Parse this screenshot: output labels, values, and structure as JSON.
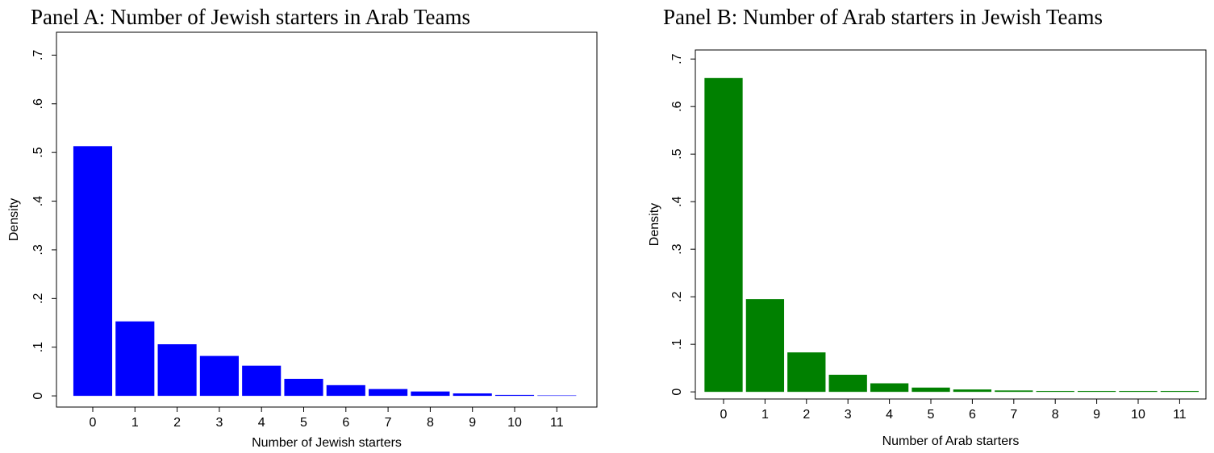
{
  "chart_data": [
    {
      "type": "bar",
      "title": "Panel A: Number of Jewish starters in Arab Teams",
      "x_label": "Number of Jewish starters",
      "y_label": "Density",
      "categories": [
        "0",
        "1",
        "2",
        "3",
        "4",
        "5",
        "6",
        "7",
        "8",
        "9",
        "10",
        "11"
      ],
      "values": [
        0.513,
        0.153,
        0.106,
        0.082,
        0.062,
        0.035,
        0.022,
        0.014,
        0.009,
        0.005,
        0.002,
        0.001
      ],
      "color": "#0000ff",
      "ylim": [
        -0.023,
        0.747
      ],
      "yticks": [
        0,
        {
          "value": 0.1,
          "label": ".1"
        },
        {
          "value": 0.2,
          "label": ".2"
        },
        {
          "value": 0.3,
          "label": ".3"
        },
        {
          "value": 0.4,
          "label": ".4"
        },
        {
          "value": 0.5,
          "label": ".5"
        },
        {
          "value": 0.6,
          "label": ".6"
        },
        {
          "value": 0.7,
          "label": ".7"
        }
      ],
      "grid": false
    },
    {
      "type": "bar",
      "title": "Panel B: Number of Arab starters in Jewish Teams",
      "x_label": "Number of Arab starters",
      "y_label": "Density",
      "categories": [
        "0",
        "1",
        "2",
        "3",
        "4",
        "5",
        "6",
        "7",
        "8",
        "9",
        "10",
        "11"
      ],
      "values": [
        0.66,
        0.195,
        0.083,
        0.036,
        0.018,
        0.009,
        0.005,
        0.003,
        0.002,
        0.002,
        0.002,
        0.002
      ],
      "color": "#008000",
      "ylim": [
        -0.015,
        0.719
      ],
      "yticks": [
        0,
        {
          "value": 0.1,
          "label": ".1"
        },
        {
          "value": 0.2,
          "label": ".2"
        },
        {
          "value": 0.3,
          "label": ".3"
        },
        {
          "value": 0.4,
          "label": ".4"
        },
        {
          "value": 0.5,
          "label": ".5"
        },
        {
          "value": 0.6,
          "label": ".6"
        },
        {
          "value": 0.7,
          "label": ".7"
        }
      ],
      "grid": false
    }
  ]
}
